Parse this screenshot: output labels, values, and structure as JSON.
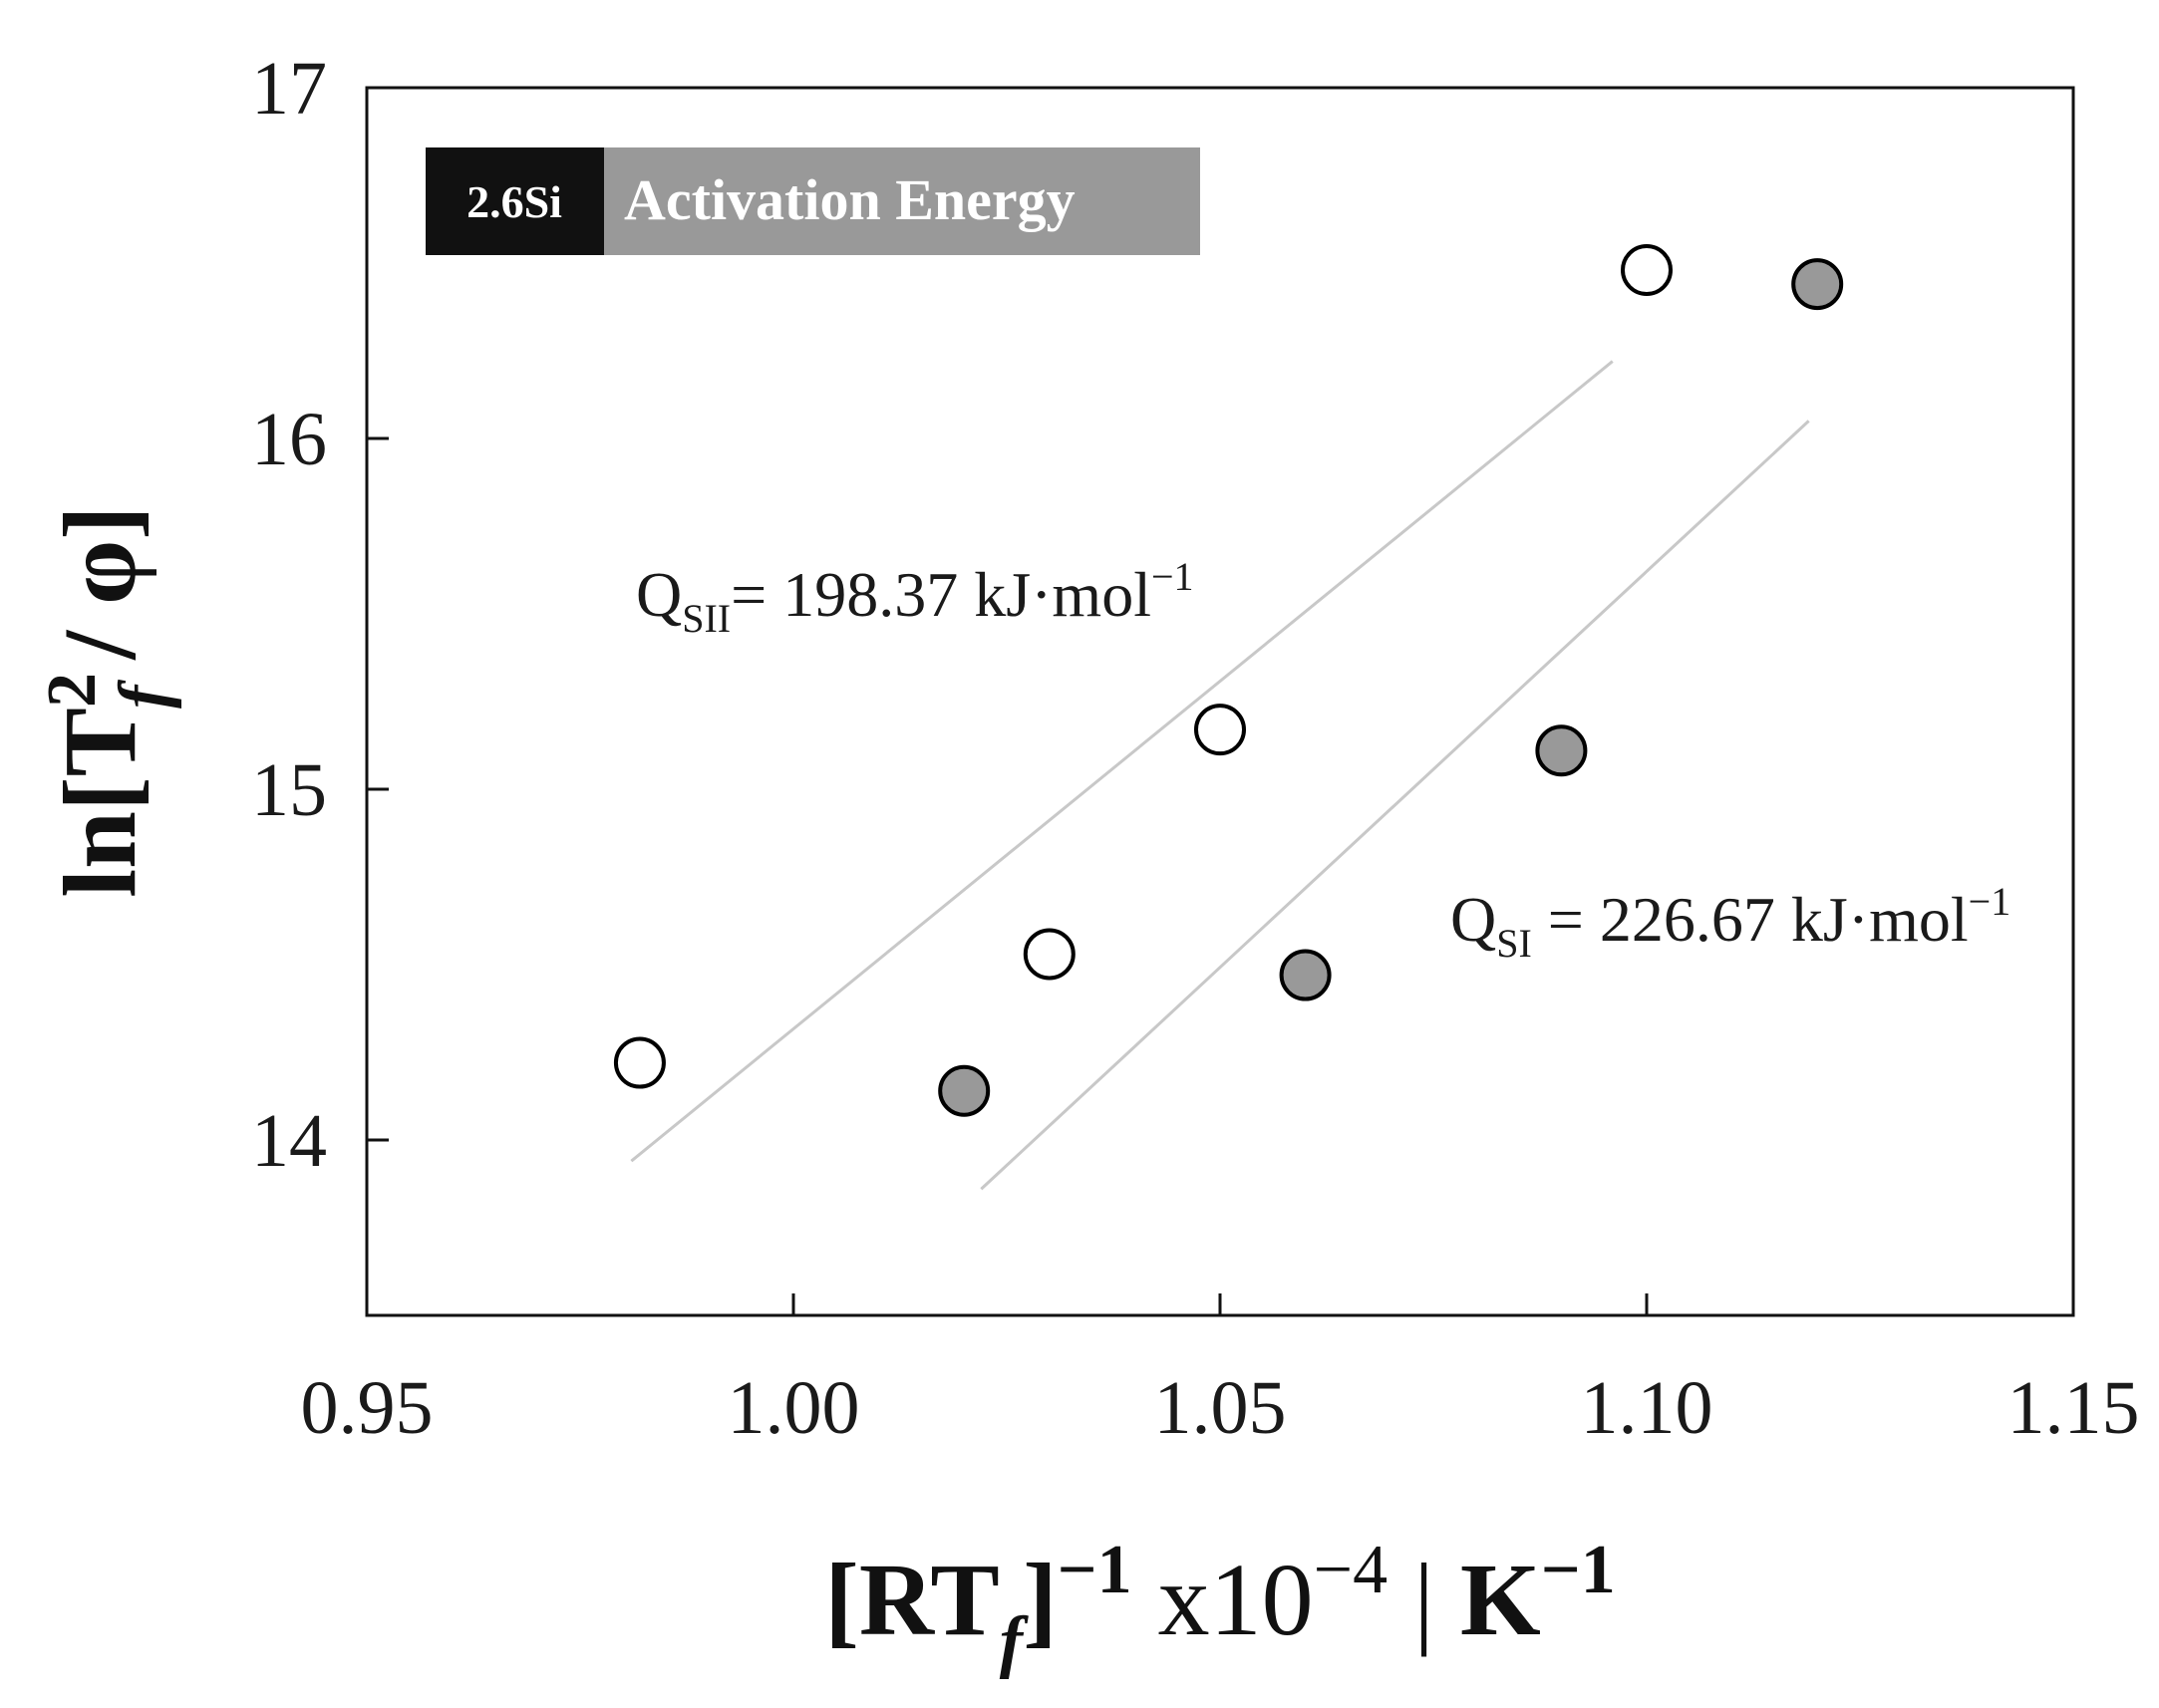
{
  "chart_data": {
    "type": "scatter",
    "title": "",
    "badge": {
      "tag": "2.6Si",
      "label": "Activation Energy"
    },
    "xlabel": {
      "main": "[RT",
      "sub": "f",
      "close": "]",
      "sup1": "−1",
      "mid": " x10",
      "sup2": "−4",
      "sep": " | ",
      "unit": "K",
      "sup3": "−1"
    },
    "ylabel": {
      "main": "ln[T",
      "sup": "2",
      "sub": "f",
      "rest": " / φ]"
    },
    "xlim": [
      0.95,
      1.15
    ],
    "ylim": [
      13.5,
      17
    ],
    "xticks": [
      "0.95",
      "1.00",
      "1.05",
      "1.10",
      "1.15"
    ],
    "xtick_values": [
      0.95,
      1.0,
      1.05,
      1.1,
      1.15
    ],
    "yticks": [
      "14",
      "15",
      "16",
      "17"
    ],
    "ytick_values": [
      14,
      15,
      16,
      17
    ],
    "grid": false,
    "series": [
      {
        "name": "SII",
        "marker": "open-circle",
        "color": "#ffffff",
        "x": [
          0.982,
          1.03,
          1.05,
          1.1
        ],
        "y": [
          14.22,
          14.53,
          15.17,
          16.48
        ],
        "fit": {
          "x": [
            0.981,
            1.096
          ],
          "y": [
            13.94,
            16.22
          ]
        },
        "annotation": {
          "q": "Q",
          "sub": "SII",
          "text": "= 198.37 kJ·mol",
          "sup": "−1"
        }
      },
      {
        "name": "SI",
        "marker": "filled-circle",
        "color": "#999999",
        "x": [
          1.02,
          1.06,
          1.09,
          1.12
        ],
        "y": [
          14.14,
          14.47,
          15.11,
          16.44
        ],
        "fit": {
          "x": [
            1.022,
            1.119
          ],
          "y": [
            13.86,
            16.05
          ]
        },
        "annotation": {
          "q": "Q",
          "sub": "SI",
          "text": " = 226.67 kJ·mol",
          "sup": "−1"
        }
      }
    ],
    "colors": {
      "fit_line": "#c8c8c8",
      "badge_dark": "#111111",
      "badge_gray": "#999999",
      "marker_edge": "#000000"
    }
  }
}
